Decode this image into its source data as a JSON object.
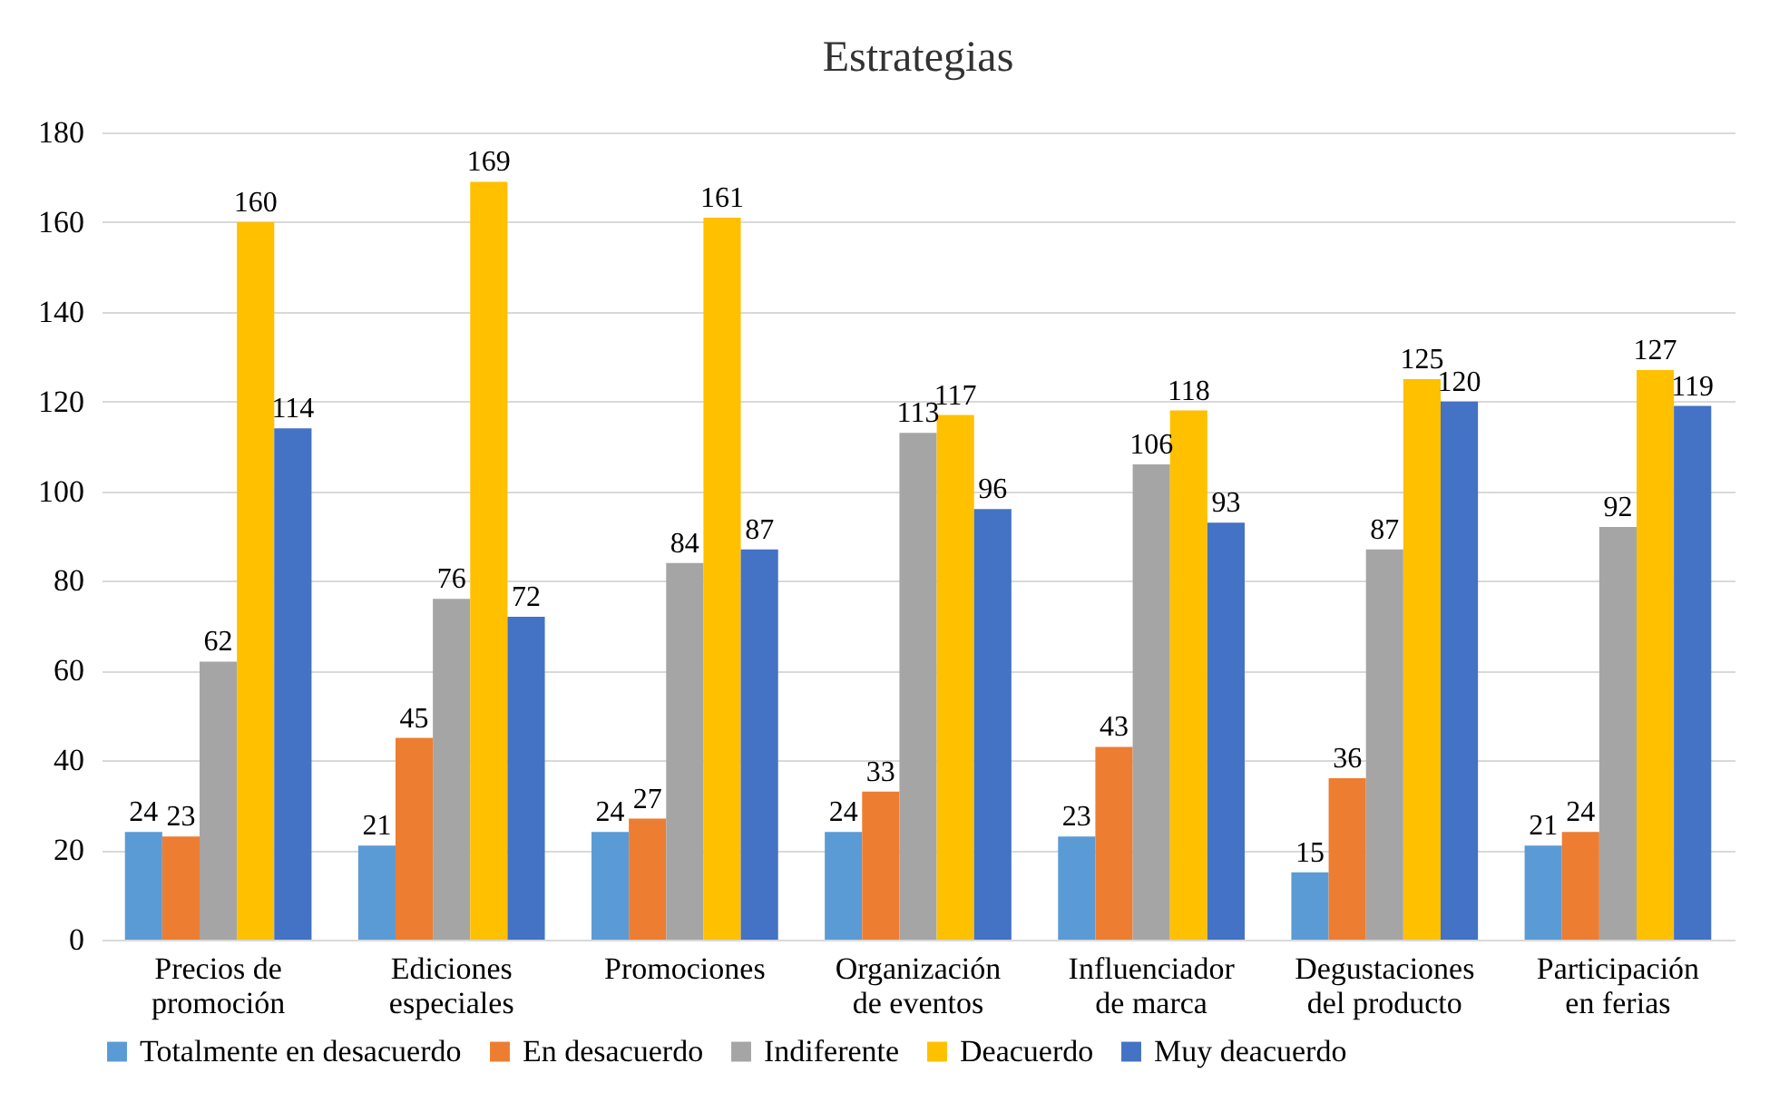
{
  "chart_data": {
    "type": "bar",
    "title": "Estrategias",
    "categories": [
      "Precios de\npromoción",
      "Ediciones\nespeciales",
      "Promociones",
      "Organización\nde eventos",
      "Influenciador\nde marca",
      "Degustaciones\ndel producto",
      "Participación\nen ferias"
    ],
    "series": [
      {
        "name": "Totalmente en desacuerdo",
        "color": "#5b9bd5",
        "values": [
          24,
          21,
          24,
          24,
          23,
          15,
          21
        ]
      },
      {
        "name": "En desacuerdo",
        "color": "#ed7d31",
        "values": [
          23,
          45,
          27,
          33,
          43,
          36,
          24
        ]
      },
      {
        "name": "Indiferente",
        "color": "#a5a5a5",
        "values": [
          62,
          76,
          84,
          113,
          106,
          87,
          92
        ]
      },
      {
        "name": "Deacuerdo",
        "color": "#ffc000",
        "values": [
          160,
          169,
          161,
          117,
          118,
          125,
          127
        ]
      },
      {
        "name": "Muy deacuerdo",
        "color": "#4472c4",
        "values": [
          114,
          72,
          87,
          96,
          93,
          120,
          119
        ]
      }
    ],
    "ylim": [
      0,
      180
    ],
    "yticks": [
      0,
      20,
      40,
      60,
      80,
      100,
      120,
      140,
      160,
      180
    ],
    "grid": "y",
    "legend": "bottom",
    "data_labels": true
  }
}
